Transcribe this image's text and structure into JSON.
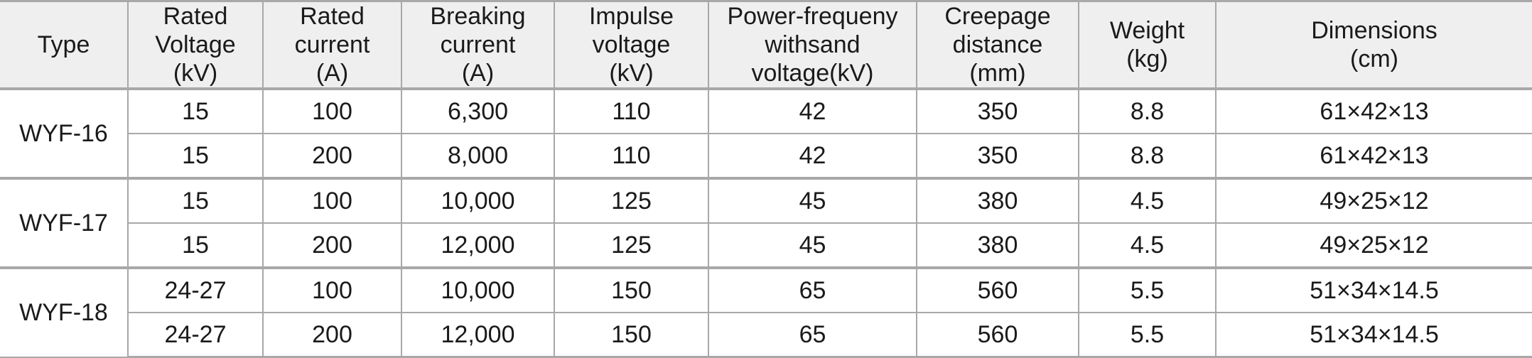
{
  "table": {
    "header": [
      [
        "Type"
      ],
      [
        "Rated",
        "Voltage",
        "(kV)"
      ],
      [
        "Rated",
        "current",
        "(A)"
      ],
      [
        "Breaking",
        "current",
        "(A)"
      ],
      [
        "Impulse",
        "voltage",
        "(kV)"
      ],
      [
        "Power-frequeny",
        "withsand",
        "voltage(kV)"
      ],
      [
        "Creepage",
        "distance",
        "(mm)"
      ],
      [
        "Weight",
        "(kg)"
      ],
      [
        "Dimensions",
        "(cm)"
      ]
    ],
    "groups": [
      {
        "type": "WYF-16",
        "rows": [
          [
            "15",
            "100",
            "6,300",
            "110",
            "42",
            "350",
            "8.8",
            "61×42×13"
          ],
          [
            "15",
            "200",
            "8,000",
            "110",
            "42",
            "350",
            "8.8",
            "61×42×13"
          ]
        ]
      },
      {
        "type": "WYF-17",
        "rows": [
          [
            "15",
            "100",
            "10,000",
            "125",
            "45",
            "380",
            "4.5",
            "49×25×12"
          ],
          [
            "15",
            "200",
            "12,000",
            "125",
            "45",
            "380",
            "4.5",
            "49×25×12"
          ]
        ]
      },
      {
        "type": "WYF-18",
        "rows": [
          [
            "24-27",
            "100",
            "10,000",
            "150",
            "65",
            "560",
            "5.5",
            "51×34×14.5"
          ],
          [
            "24-27",
            "200",
            "12,000",
            "150",
            "65",
            "560",
            "5.5",
            "51×34×14.5"
          ]
        ]
      }
    ]
  }
}
